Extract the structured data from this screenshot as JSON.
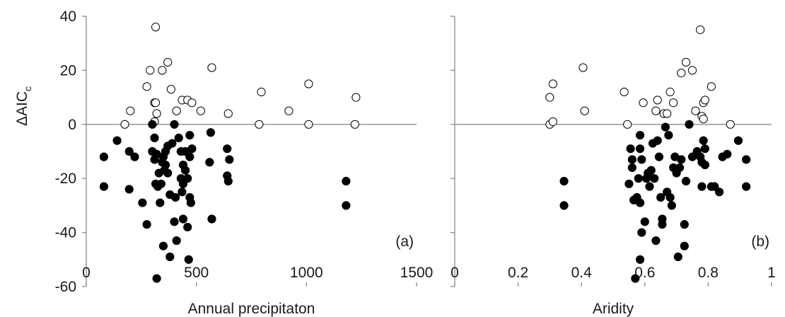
{
  "colors": {
    "axis": "#8c8c8c",
    "marker": "#000000",
    "background": "#ffffff"
  },
  "y_axis_title": {
    "main": "ΔAIC",
    "sub": "c"
  },
  "chart_data": [
    {
      "type": "scatter",
      "panel_label": "(a)",
      "xlabel": "Annual precipitaton",
      "ylabel": "ΔAICₓ",
      "xlim": [
        0,
        1500
      ],
      "ylim": [
        -60,
        40
      ],
      "x_ticks": [
        0,
        500,
        1000,
        1500
      ],
      "y_ticks": [
        40,
        20,
        0,
        -20,
        -40,
        -60
      ],
      "x_tick_labels": [
        "0",
        "500",
        "1000",
        "1500"
      ],
      "y_tick_labels": [
        "40",
        "20",
        "0",
        "-20",
        "-40",
        "-60"
      ],
      "grid": false,
      "series": [
        {
          "marker": "open-circle",
          "points": [
            [
              315,
              36
            ],
            [
              370,
              23
            ],
            [
              290,
              20
            ],
            [
              345,
              20
            ],
            [
              570,
              21
            ],
            [
              275,
              14
            ],
            [
              385,
              13
            ],
            [
              310,
              8
            ],
            [
              315,
              8
            ],
            [
              435,
              9
            ],
            [
              460,
              9
            ],
            [
              480,
              8
            ],
            [
              410,
              5
            ],
            [
              200,
              5
            ],
            [
              520,
              5
            ],
            [
              320,
              4
            ],
            [
              310,
              1
            ],
            [
              175,
              0
            ],
            [
              645,
              4
            ],
            [
              795,
              12
            ],
            [
              1010,
              15
            ],
            [
              920,
              5
            ],
            [
              785,
              0
            ],
            [
              1010,
              0
            ],
            [
              1225,
              10
            ],
            [
              1220,
              0
            ]
          ]
        },
        {
          "marker": "filled-circle",
          "points": [
            [
              80,
              -12
            ],
            [
              80,
              -23
            ],
            [
              140,
              -6
            ],
            [
              195,
              -10
            ],
            [
              220,
              -12
            ],
            [
              195,
              -24
            ],
            [
              255,
              -29
            ],
            [
              275,
              -37
            ],
            [
              300,
              0
            ],
            [
              310,
              -5
            ],
            [
              300,
              -10
            ],
            [
              320,
              -11
            ],
            [
              310,
              -13
            ],
            [
              330,
              -18
            ],
            [
              315,
              -22
            ],
            [
              325,
              -23
            ],
            [
              340,
              -22
            ],
            [
              360,
              -15
            ],
            [
              370,
              -18
            ],
            [
              335,
              -29
            ],
            [
              350,
              -45
            ],
            [
              320,
              -57
            ],
            [
              380,
              -49
            ],
            [
              380,
              -26
            ],
            [
              405,
              -27
            ],
            [
              400,
              -36
            ],
            [
              410,
              -43
            ],
            [
              430,
              -20
            ],
            [
              440,
              -15
            ],
            [
              435,
              -25
            ],
            [
              440,
              -35
            ],
            [
              460,
              -38
            ],
            [
              465,
              -50
            ],
            [
              460,
              -20
            ],
            [
              470,
              -27
            ],
            [
              475,
              -29
            ],
            [
              470,
              -4
            ],
            [
              450,
              -10
            ],
            [
              480,
              -9
            ],
            [
              400,
              0
            ],
            [
              420,
              -5
            ],
            [
              430,
              -10
            ],
            [
              390,
              -7
            ],
            [
              370,
              -8
            ],
            [
              360,
              -10
            ],
            [
              350,
              -12
            ],
            [
              345,
              -14
            ],
            [
              355,
              -17
            ],
            [
              450,
              -17
            ],
            [
              440,
              -22
            ],
            [
              470,
              -12
            ],
            [
              560,
              -14
            ],
            [
              565,
              -3
            ],
            [
              570,
              -35
            ],
            [
              640,
              -9
            ],
            [
              650,
              -13
            ],
            [
              640,
              -19
            ],
            [
              645,
              -21
            ],
            [
              1180,
              -21
            ],
            [
              1180,
              -30
            ]
          ]
        }
      ]
    },
    {
      "type": "scatter",
      "panel_label": "(b)",
      "xlabel": "Aridity",
      "ylabel": "",
      "xlim": [
        0,
        1
      ],
      "ylim": [
        -60,
        40
      ],
      "x_ticks": [
        0,
        0.2,
        0.4,
        0.6,
        0.8,
        1
      ],
      "y_ticks": [
        40,
        20,
        0,
        -20,
        -40,
        -60
      ],
      "x_tick_labels": [
        "0",
        "0.2",
        "0.4",
        "0.6",
        "0.8",
        "1"
      ],
      "y_tick_labels": [
        "40",
        "20",
        "0",
        "-20",
        "-40",
        "-60"
      ],
      "grid": false,
      "series": [
        {
          "marker": "open-circle",
          "points": [
            [
              0.3,
              10
            ],
            [
              0.31,
              15
            ],
            [
              0.3,
              0
            ],
            [
              0.31,
              1
            ],
            [
              0.405,
              21
            ],
            [
              0.41,
              5
            ],
            [
              0.535,
              12
            ],
            [
              0.545,
              0
            ],
            [
              0.595,
              8
            ],
            [
              0.635,
              5
            ],
            [
              0.64,
              9
            ],
            [
              0.66,
              4
            ],
            [
              0.67,
              4
            ],
            [
              0.68,
              12
            ],
            [
              0.69,
              8
            ],
            [
              0.715,
              19
            ],
            [
              0.73,
              23
            ],
            [
              0.75,
              20
            ],
            [
              0.76,
              5
            ],
            [
              0.775,
              35
            ],
            [
              0.78,
              3
            ],
            [
              0.785,
              8
            ],
            [
              0.79,
              9
            ],
            [
              0.785,
              2
            ],
            [
              0.81,
              14
            ],
            [
              0.87,
              0
            ]
          ]
        },
        {
          "marker": "filled-circle",
          "points": [
            [
              0.345,
              -21
            ],
            [
              0.345,
              -30
            ],
            [
              0.55,
              -22
            ],
            [
              0.555,
              -9
            ],
            [
              0.56,
              -13
            ],
            [
              0.56,
              -16
            ],
            [
              0.565,
              -28
            ],
            [
              0.57,
              -57
            ],
            [
              0.575,
              -27
            ],
            [
              0.58,
              -20
            ],
            [
              0.585,
              -29
            ],
            [
              0.585,
              -4
            ],
            [
              0.585,
              -9
            ],
            [
              0.59,
              -13
            ],
            [
              0.59,
              -40
            ],
            [
              0.585,
              -50
            ],
            [
              0.6,
              -36
            ],
            [
              0.605,
              -20
            ],
            [
              0.61,
              -18
            ],
            [
              0.615,
              -23
            ],
            [
              0.62,
              -17
            ],
            [
              0.625,
              -7
            ],
            [
              0.63,
              -20
            ],
            [
              0.635,
              -43
            ],
            [
              0.64,
              -6
            ],
            [
              0.645,
              -12
            ],
            [
              0.65,
              -27
            ],
            [
              0.655,
              -35
            ],
            [
              0.655,
              -37
            ],
            [
              0.665,
              -1
            ],
            [
              0.67,
              -25
            ],
            [
              0.675,
              -4
            ],
            [
              0.68,
              -27
            ],
            [
              0.685,
              -30
            ],
            [
              0.69,
              -16
            ],
            [
              0.695,
              -12
            ],
            [
              0.7,
              -18
            ],
            [
              0.705,
              -49
            ],
            [
              0.71,
              -16
            ],
            [
              0.715,
              -13
            ],
            [
              0.725,
              -37
            ],
            [
              0.725,
              -45
            ],
            [
              0.73,
              -21
            ],
            [
              0.74,
              0
            ],
            [
              0.75,
              -12
            ],
            [
              0.765,
              -10
            ],
            [
              0.775,
              -12
            ],
            [
              0.78,
              -23
            ],
            [
              0.78,
              -14
            ],
            [
              0.785,
              -6
            ],
            [
              0.79,
              -9
            ],
            [
              0.79,
              -15
            ],
            [
              0.81,
              -23
            ],
            [
              0.82,
              -23
            ],
            [
              0.835,
              -25
            ],
            [
              0.845,
              -12
            ],
            [
              0.86,
              -11
            ],
            [
              0.895,
              -6
            ],
            [
              0.92,
              -23
            ],
            [
              0.92,
              -13
            ]
          ]
        }
      ]
    }
  ]
}
